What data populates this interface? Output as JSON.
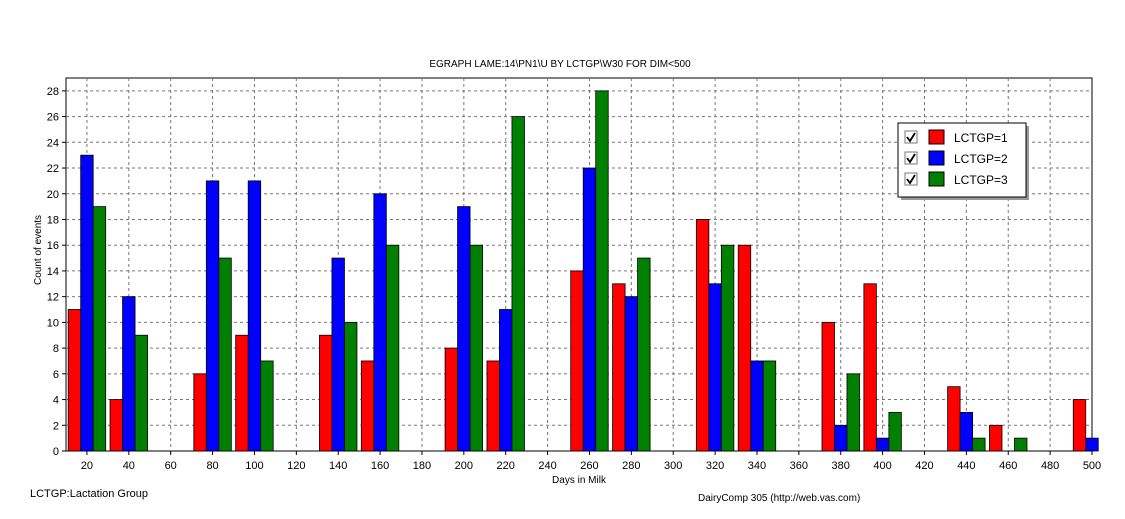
{
  "chart_data": {
    "type": "bar",
    "title": "EGRAPH LAME:14\\PN1\\U BY LCTGP\\W30 FOR DIM<500",
    "xlabel": "Days in Milk",
    "ylabel": "Count of events",
    "ylim": [
      0,
      29
    ],
    "xlim": [
      10,
      500
    ],
    "x_ticks": [
      20,
      40,
      60,
      80,
      100,
      120,
      140,
      160,
      180,
      200,
      220,
      240,
      260,
      280,
      300,
      320,
      340,
      360,
      380,
      400,
      420,
      440,
      460,
      480,
      500
    ],
    "y_ticks": [
      0,
      2,
      4,
      6,
      8,
      10,
      12,
      14,
      16,
      18,
      20,
      22,
      24,
      26,
      28
    ],
    "grid": true,
    "legend_position": "top-right",
    "categories": [
      20,
      40,
      80,
      100,
      140,
      160,
      200,
      220,
      260,
      280,
      320,
      340,
      380,
      400,
      440,
      460,
      500
    ],
    "series": [
      {
        "name": "LCTGP=1",
        "color": "#ff0000",
        "values": [
          11,
          4,
          6,
          9,
          9,
          7,
          8,
          7,
          14,
          13,
          18,
          16,
          10,
          13,
          5,
          2,
          4
        ]
      },
      {
        "name": "LCTGP=2",
        "color": "#0000ff",
        "values": [
          23,
          12,
          21,
          21,
          15,
          20,
          19,
          11,
          22,
          12,
          13,
          7,
          2,
          1,
          3,
          0,
          1
        ]
      },
      {
        "name": "LCTGP=3",
        "color": "#008000",
        "values": [
          19,
          9,
          15,
          7,
          10,
          16,
          16,
          26,
          28,
          15,
          16,
          7,
          6,
          3,
          1,
          1,
          0
        ]
      }
    ]
  },
  "footer": {
    "legend_note": "LCTGP:Lactation Group",
    "credit": "DairyComp 305   (http://web.vas.com)"
  }
}
